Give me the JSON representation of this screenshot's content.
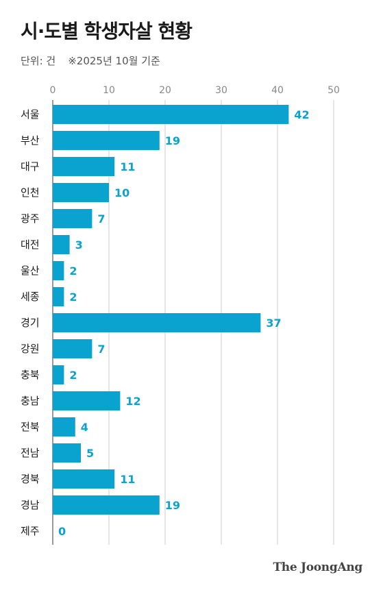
{
  "title": "시·도별 학생자살 현황",
  "unit_label": "단위: 건",
  "note": "※2025년 10월 기준",
  "logo": "The JoongAng",
  "colors": {
    "bar": "#0aa2cf",
    "label": "#0aa2cf",
    "grid": "#cccccc",
    "text": "#1a1a1a",
    "tick": "#888888"
  },
  "chart_data": {
    "type": "bar",
    "orientation": "horizontal",
    "categories": [
      "서울",
      "부산",
      "대구",
      "인천",
      "광주",
      "대전",
      "울산",
      "세종",
      "경기",
      "강원",
      "충북",
      "충남",
      "전북",
      "전남",
      "경북",
      "경남",
      "제주"
    ],
    "values": [
      42,
      19,
      11,
      10,
      7,
      3,
      2,
      2,
      37,
      7,
      2,
      12,
      4,
      5,
      11,
      19,
      0
    ],
    "xlim": [
      0,
      50
    ],
    "xticks": [
      0,
      10,
      20,
      30,
      40,
      50
    ],
    "grid": true,
    "data_labels": true
  }
}
